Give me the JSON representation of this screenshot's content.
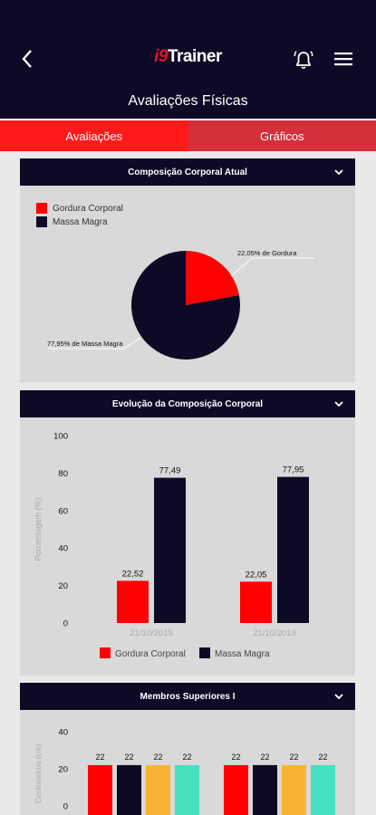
{
  "header": {
    "logo_prefix": "i9",
    "logo_text": "Trainer",
    "page_title": "Avaliações Físicas"
  },
  "tabs": [
    {
      "label": "Avaliações",
      "active": true
    },
    {
      "label": "Gráficos",
      "active": false
    }
  ],
  "colors": {
    "dark": "#0d0a25",
    "red": "#ff0000",
    "yellow": "#f9b233",
    "teal": "#45e0c0"
  },
  "cards": {
    "composition_title": "Composição Corporal Atual",
    "evolution_title": "Evolução da Composição Corporal",
    "upper_title": "Membros Superiores I"
  },
  "chart_data": [
    {
      "type": "pie",
      "title": "Composição Corporal Atual",
      "legend": [
        "Gordura Corporal",
        "Massa Magra"
      ],
      "slices": [
        {
          "name": "Gordura Corporal",
          "value": 22.05,
          "label": "22,05% de Gordura",
          "color": "#ff0000"
        },
        {
          "name": "Massa Magra",
          "value": 77.95,
          "label": "77,95% de Massa Magra",
          "color": "#0d0a25"
        }
      ]
    },
    {
      "type": "bar",
      "title": "Evolução da Composição Corporal",
      "ylabel": "Porcentagem (%)",
      "ylim": [
        0,
        100
      ],
      "yticks": [
        0,
        20,
        40,
        60,
        80,
        100
      ],
      "categories": [
        "21/10/2019",
        "21/10/2019"
      ],
      "series": [
        {
          "name": "Gordura Corporal",
          "values": [
            22.52,
            22.05
          ],
          "labels": [
            "22,52",
            "22,05"
          ],
          "color": "#ff0000"
        },
        {
          "name": "Massa Magra",
          "values": [
            77.49,
            77.95
          ],
          "labels": [
            "77,49",
            "77,95"
          ],
          "color": "#0d0a25"
        }
      ]
    },
    {
      "type": "bar",
      "title": "Membros Superiores I",
      "ylabel": "Centímetros (cm)",
      "ylim": [
        0,
        40
      ],
      "yticks": [
        0,
        20,
        40
      ],
      "groups": [
        {
          "values": [
            22,
            22,
            22,
            22
          ],
          "labels": [
            "22",
            "22",
            "22",
            "22"
          ]
        },
        {
          "values": [
            22,
            22,
            22,
            22
          ],
          "labels": [
            "22",
            "22",
            "22",
            "22"
          ]
        }
      ],
      "series_colors": [
        "#ff0000",
        "#0d0a25",
        "#f9b233",
        "#45e0c0"
      ]
    }
  ]
}
